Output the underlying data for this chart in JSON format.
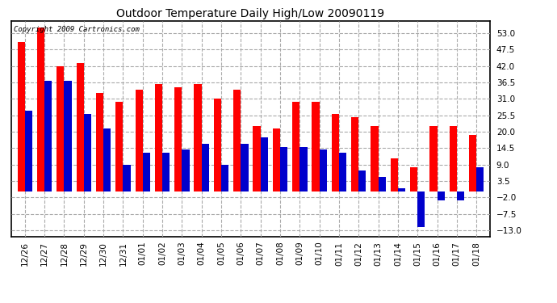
{
  "title": "Outdoor Temperature Daily High/Low 20090119",
  "copyright": "Copyright 2009 Cartronics.com",
  "dates": [
    "12/26",
    "12/27",
    "12/28",
    "12/29",
    "12/30",
    "12/31",
    "01/01",
    "01/02",
    "01/03",
    "01/04",
    "01/05",
    "01/06",
    "01/07",
    "01/08",
    "01/09",
    "01/10",
    "01/11",
    "01/12",
    "01/13",
    "01/14",
    "01/15",
    "01/16",
    "01/17",
    "01/18"
  ],
  "highs": [
    50,
    55,
    42,
    43,
    33,
    30,
    34,
    36,
    35,
    36,
    31,
    34,
    22,
    21,
    30,
    30,
    26,
    25,
    22,
    11,
    8,
    22,
    22,
    19
  ],
  "lows": [
    27,
    37,
    37,
    26,
    21,
    9,
    13,
    13,
    14,
    16,
    9,
    16,
    18,
    15,
    15,
    14,
    13,
    7,
    5,
    1,
    -12,
    -3,
    -3,
    8
  ],
  "high_color": "#FF0000",
  "low_color": "#0000CC",
  "background_color": "#FFFFFF",
  "grid_color": "#AAAAAA",
  "yticks": [
    53.0,
    47.5,
    42.0,
    36.5,
    31.0,
    25.5,
    20.0,
    14.5,
    9.0,
    3.5,
    -2.0,
    -7.5,
    -13.0
  ],
  "ylim": [
    -15,
    57
  ],
  "bar_width": 0.38,
  "figure_bg": "#FFFFFF",
  "title_fontsize": 10,
  "tick_fontsize": 7.5,
  "copyright_fontsize": 6.5
}
